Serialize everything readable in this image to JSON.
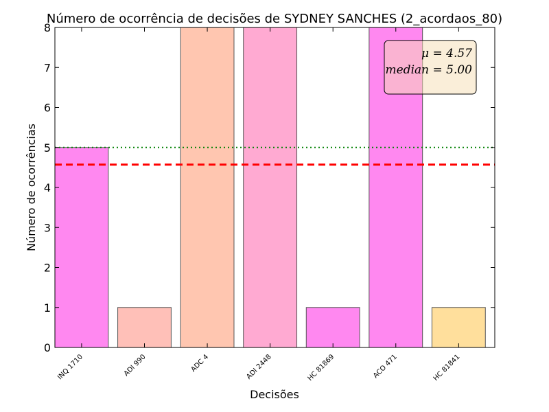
{
  "chart_data": {
    "type": "bar",
    "title": "Número de ocorrência de decisões de SYDNEY SANCHES (2_acordaos_80)",
    "xlabel": "Decisões",
    "ylabel": "Número de ocorrências",
    "categories": [
      "INQ 1710",
      "ADI 990",
      "ADC 4",
      "ADI 2448",
      "HC 81869",
      "ACO 471",
      "HC 81841"
    ],
    "values": [
      5,
      1,
      8,
      8,
      1,
      8,
      1
    ],
    "bar_colors": [
      "#ff88f0",
      "#ffc0b8",
      "#ffc6b0",
      "#ffaad2",
      "#ff88f0",
      "#ff88f0",
      "#ffdf9c"
    ],
    "ylim": [
      0,
      8
    ],
    "yticks": [
      "0",
      "1",
      "2",
      "3",
      "4",
      "5",
      "6",
      "7",
      "8"
    ],
    "mean": 4.57,
    "median": 5.0,
    "mean_line_color": "#ff0000",
    "median_line_color": "#008000",
    "stats_box": {
      "mean_label": "μ = 4.57",
      "median_label": "median = 5.00"
    },
    "legend_placement": "top-right",
    "grid": false
  }
}
